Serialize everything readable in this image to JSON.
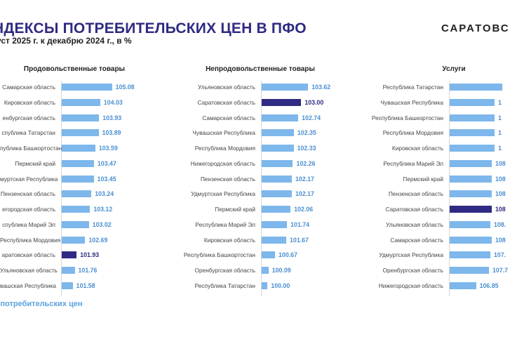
{
  "header": {
    "title": "НДЕКСЫ ПОТРЕБИТЕЛЬСКИХ ЦЕН В ПФО",
    "subtitle": "густ 2025 г. к декабрю 2024 г., в %",
    "brand": "САРАТОВС"
  },
  "footer": {
    "text": "ы потребительских цен"
  },
  "colors": {
    "bar": "#7db7ec",
    "highlight": "#2f2a83",
    "value_text": "#4a8fd2",
    "title": "#2f2a83"
  },
  "chart_data": [
    {
      "type": "bar",
      "orientation": "horizontal",
      "title": "Продовольственные товары",
      "categories": [
        "Самарская область",
        "Кировская область",
        "енбургская область",
        "спублика Татарстан",
        "публика Башкортостан",
        "Пермский край",
        "муртская Республика",
        "Пензенская область",
        "егородская область",
        "спублика Марий Эл",
        "Республика Мордовия",
        "аратовская область",
        "Ульяновская область",
        "вашская Республика"
      ],
      "value_labels": [
        "105.08",
        "104.03",
        "103.93",
        "103.89",
        "103.59",
        "103.47",
        "103.45",
        "103.24",
        "103.12",
        "103.02",
        "102.69",
        "101.93",
        "101.76",
        "101.58"
      ],
      "values": [
        105.08,
        104.03,
        103.93,
        103.89,
        103.59,
        103.47,
        103.45,
        103.24,
        103.12,
        103.02,
        102.69,
        101.93,
        101.76,
        101.58
      ],
      "highlight_index": 11
    },
    {
      "type": "bar",
      "orientation": "horizontal",
      "title": "Непродовольственные товары",
      "categories": [
        "Ульяновская область",
        "Саратовская область",
        "Самарская область",
        "Чувашская Республика",
        "Республика Мордовия",
        "Нижегородская область",
        "Пензенская область",
        "Удмуртская Республика",
        "Пермский край",
        "Республика Марий Эл",
        "Кировская область",
        "Республика Башкортостан",
        "Оренбургская область",
        "Республика Татарстан"
      ],
      "value_labels": [
        "103.62",
        "103.00",
        "102.74",
        "102.35",
        "102.33",
        "102.26",
        "102.17",
        "102.17",
        "102.06",
        "101.74",
        "101.67",
        "100.67",
        "100.09",
        "100.00"
      ],
      "values": [
        103.62,
        103.0,
        102.74,
        102.35,
        102.33,
        102.26,
        102.17,
        102.17,
        102.06,
        101.74,
        101.67,
        100.67,
        100.09,
        100.0
      ],
      "highlight_index": 1
    },
    {
      "type": "bar",
      "orientation": "horizontal",
      "title": "Услуги",
      "categories": [
        "Республика Татарстан",
        "Чувашская Республика",
        "Республика Башкортостан",
        "Республика Мордовия",
        "Кировская область",
        "Республика Марий Эл",
        "Пермский край",
        "Пензенская область",
        "Саратовская область",
        "Ульяновская область",
        "Самарская область",
        "Удмуртская Республика",
        "Оренбургская область",
        "Нижегородская область"
      ],
      "value_labels": [
        "",
        "1",
        "1",
        "1",
        "1",
        "108",
        "108",
        "108",
        "108",
        "108.",
        "108",
        "107.",
        "107.7",
        "106.85"
      ],
      "values": [
        null,
        null,
        null,
        null,
        null,
        null,
        null,
        null,
        null,
        null,
        null,
        null,
        null,
        106.85
      ],
      "highlight_index": 8
    }
  ]
}
